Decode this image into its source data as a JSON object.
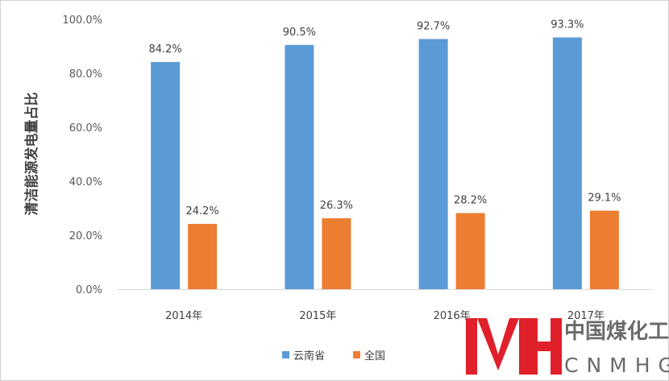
{
  "chart_data": {
    "type": "bar",
    "title": "",
    "xlabel": "",
    "ylabel": "清洁能源发电量占比",
    "categories": [
      "2014年",
      "2015年",
      "2016年",
      "2017年"
    ],
    "yticks": [
      "0.0%",
      "20.0%",
      "40.0%",
      "60.0%",
      "80.0%",
      "100.0%"
    ],
    "ylim": [
      0,
      100
    ],
    "grid": false,
    "legend_position": "bottom",
    "series": [
      {
        "name": "云南省",
        "color": "#5b9bd5",
        "values": [
          84.2,
          90.5,
          92.7,
          93.3
        ],
        "labels": [
          "84.2%",
          "90.5%",
          "92.7%",
          "93.3%"
        ]
      },
      {
        "name": "全国",
        "color": "#ed7d31",
        "values": [
          24.2,
          26.3,
          28.2,
          29.1
        ],
        "labels": [
          "24.2%",
          "26.3%",
          "28.2%",
          "29.1%"
        ]
      }
    ]
  },
  "watermark": {
    "cn": "中国煤化工",
    "en": "CNMHG",
    "logo_color": "#e0202a",
    "text_color": "#6b6b6b"
  }
}
